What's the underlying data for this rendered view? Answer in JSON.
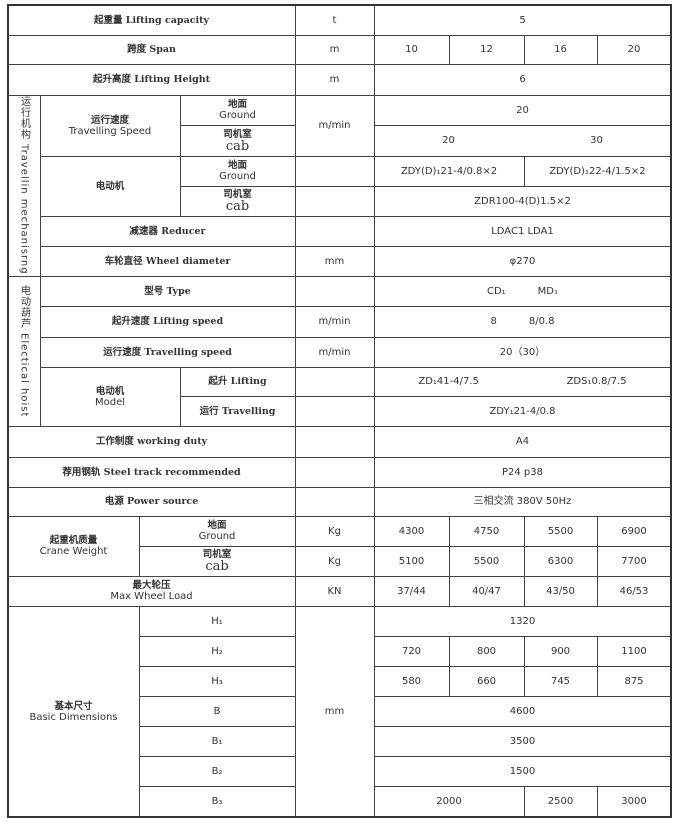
{
  "lifting_capacity": {
    "label": "起重量 Lifting capacity",
    "unit": "t",
    "value": "5"
  },
  "span": {
    "label": "跨度 Span",
    "unit": "m",
    "values": [
      "10",
      "12",
      "16",
      "20"
    ]
  },
  "lifting_height": {
    "label": "起升高度 Lifting Height",
    "unit": "m",
    "value": "6"
  },
  "travelling_mechanism": {
    "section_cn": "运行机构",
    "section_en": "Travellin mechanisrng",
    "speed": {
      "cn": "运行速度",
      "en": "Travelling Speed",
      "unit": "m/min",
      "ground": {
        "cn": "地面",
        "en": "Ground",
        "value": "20"
      },
      "cab": {
        "cn": "司机室",
        "en": "cab",
        "values": [
          "20",
          "30"
        ]
      }
    },
    "motor": {
      "cn": "电动机",
      "ground": {
        "cn": "地面",
        "en": "Ground",
        "values": [
          "ZDY(D)₁21-4/0.8×2",
          "ZDY(D)₁22-4/1.5×2"
        ]
      },
      "cab": {
        "cn": "司机室",
        "en": "cab",
        "value": "ZDR100-4(D)1.5×2"
      }
    },
    "reducer": {
      "label": "减速器 Reducer",
      "value": "LDAC1   LDA1"
    },
    "wheel": {
      "label": "车轮直径 Wheel diameter",
      "unit": "mm",
      "value": "φ270"
    }
  },
  "electric_hoist": {
    "section_cn": "电动葫芦",
    "section_en": "Electical hoist",
    "type": {
      "label": "型号 Type",
      "values": [
        "CD₁",
        "MD₁"
      ]
    },
    "lifting_speed": {
      "label": "起升速度 Lifting speed",
      "unit": "m/min",
      "values": [
        "8",
        "8/0.8"
      ]
    },
    "travelling_speed": {
      "label": "运行速度 Travelling speed",
      "unit": "m/min",
      "value": "20（30）"
    },
    "model": {
      "cn": "电动机",
      "en": "Model",
      "lifting": {
        "label": "起升 Lifting",
        "values": [
          "ZD₁41-4/7.5",
          "ZDS₁0.8/7.5"
        ]
      },
      "travelling": {
        "label": "运行 Travelling",
        "value": "ZDY₁21-4/0.8"
      }
    }
  },
  "working_duty": {
    "label": "工作制度 working duty",
    "value": "A4"
  },
  "steel_track": {
    "label": "荐用钢轨 Steel track recommended",
    "value": "P24   p38"
  },
  "power": {
    "label": "电源 Power source",
    "value": "三相交流  380V  50Hz"
  },
  "crane_weight": {
    "cn": "起重机质量",
    "en": "Crane Weight",
    "ground": {
      "cn": "地面",
      "en": "Ground",
      "unit": "Kg",
      "values": [
        "4300",
        "4750",
        "5500",
        "6900"
      ]
    },
    "cab": {
      "cn": "司机室",
      "en": "cab",
      "unit": "Kg",
      "values": [
        "5100",
        "5500",
        "6300",
        "7700"
      ]
    }
  },
  "max_wheel_load": {
    "cn": "最大轮压",
    "en": "Max Wheel Load",
    "unit": "KN",
    "values": [
      "37/44",
      "40/47",
      "43/50",
      "46/53"
    ]
  },
  "basic_dimensions": {
    "cn": "基本尺寸",
    "en": "Basic Dimensions",
    "unit": "mm",
    "h1": {
      "label": "H₁",
      "value": "1320"
    },
    "h2": {
      "label": "H₂",
      "values": [
        "720",
        "800",
        "900",
        "1100"
      ]
    },
    "h3": {
      "label": "H₃",
      "values": [
        "580",
        "660",
        "745",
        "875"
      ]
    },
    "b": {
      "label": "B",
      "value": "4600"
    },
    "b1": {
      "label": "B₁",
      "value": "3500"
    },
    "b2": {
      "label": "B₂",
      "value": "1500"
    },
    "b3": {
      "label": "B₃",
      "values": [
        "2000",
        "2500",
        "3000"
      ]
    }
  }
}
